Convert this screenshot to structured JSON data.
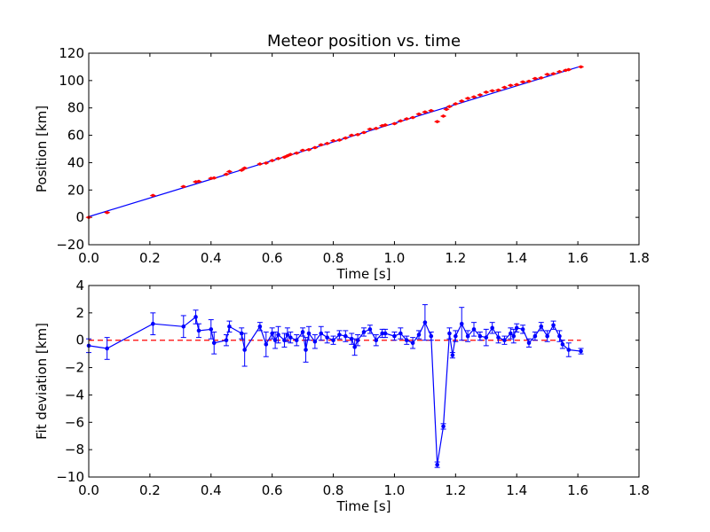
{
  "chart_data": [
    {
      "type": "scatter",
      "title": "Meteor position vs. time",
      "xlabel": "Time [s]",
      "ylabel": "Position [km]",
      "xlim": [
        0.0,
        1.8
      ],
      "ylim": [
        -20,
        120
      ],
      "xticks": [
        "0.0",
        "0.2",
        "0.4",
        "0.6",
        "0.8",
        "1.0",
        "1.2",
        "1.4",
        "1.6",
        "1.8"
      ],
      "yticks": [
        "−20",
        "0",
        "20",
        "40",
        "60",
        "80",
        "100",
        "120"
      ],
      "grid": false,
      "series": [
        {
          "kind": "points",
          "marker": "diamond",
          "color": "#ff0000",
          "x": [
            0.0,
            0.06,
            0.21,
            0.31,
            0.35,
            0.36,
            0.4,
            0.41,
            0.45,
            0.46,
            0.5,
            0.51,
            0.56,
            0.58,
            0.6,
            0.62,
            0.64,
            0.65,
            0.66,
            0.68,
            0.7,
            0.72,
            0.74,
            0.76,
            0.78,
            0.8,
            0.82,
            0.84,
            0.86,
            0.88,
            0.9,
            0.92,
            0.94,
            0.96,
            0.97,
            1.0,
            1.02,
            1.04,
            1.06,
            1.08,
            1.1,
            1.12,
            1.14,
            1.16,
            1.17,
            1.18,
            1.2,
            1.22,
            1.24,
            1.26,
            1.28,
            1.3,
            1.32,
            1.34,
            1.36,
            1.38,
            1.4,
            1.42,
            1.44,
            1.46,
            1.48,
            1.5,
            1.52,
            1.54,
            1.56,
            1.57,
            1.61
          ],
          "y": [
            0.0,
            3.5,
            16.0,
            22.5,
            26.0,
            26.3,
            28.5,
            28.8,
            31.5,
            33.5,
            34.5,
            36.0,
            39.0,
            39.7,
            41.5,
            43.0,
            44.0,
            45.0,
            46.0,
            47.0,
            49.0,
            49.5,
            51.0,
            53.0,
            54.0,
            56.0,
            56.5,
            58.0,
            60.0,
            60.5,
            62.0,
            64.5,
            65.0,
            67.0,
            67.5,
            68.5,
            70.5,
            72.0,
            73.0,
            75.5,
            77.0,
            78.0,
            70.0,
            74.0,
            79.0,
            81.0,
            83.0,
            85.0,
            87.0,
            88.0,
            89.5,
            91.5,
            92.5,
            93.0,
            95.0,
            96.5,
            97.0,
            99.0,
            99.5,
            101.5,
            102.0,
            104.5,
            105.0,
            106.5,
            107.5,
            108.0,
            110.0
          ]
        },
        {
          "kind": "line",
          "color": "#0000ff",
          "x": [
            0.0,
            1.61
          ],
          "y": [
            0.5,
            110.5
          ]
        }
      ]
    },
    {
      "type": "line",
      "xlabel": "Time [s]",
      "ylabel": "Fit deviation [km]",
      "xlim": [
        0.0,
        1.8
      ],
      "ylim": [
        -10,
        4
      ],
      "xticks": [
        "0.0",
        "0.2",
        "0.4",
        "0.6",
        "0.8",
        "1.0",
        "1.2",
        "1.4",
        "1.6",
        "1.8"
      ],
      "yticks": [
        "−10",
        "−8",
        "−6",
        "−4",
        "−2",
        "0",
        "2",
        "4"
      ],
      "grid": false,
      "reference_line": {
        "y": 0,
        "style": "dashed",
        "color": "#ff0000",
        "x": [
          0.0,
          1.61
        ]
      },
      "series": [
        {
          "color": "#0000ff",
          "marker": "dot",
          "x": [
            0.0,
            0.06,
            0.21,
            0.31,
            0.35,
            0.36,
            0.4,
            0.41,
            0.45,
            0.46,
            0.5,
            0.51,
            0.56,
            0.58,
            0.6,
            0.61,
            0.62,
            0.64,
            0.65,
            0.66,
            0.68,
            0.7,
            0.71,
            0.72,
            0.74,
            0.76,
            0.78,
            0.8,
            0.82,
            0.84,
            0.86,
            0.87,
            0.88,
            0.9,
            0.92,
            0.94,
            0.96,
            0.97,
            1.0,
            1.02,
            1.04,
            1.06,
            1.08,
            1.1,
            1.12,
            1.14,
            1.16,
            1.18,
            1.19,
            1.2,
            1.22,
            1.24,
            1.26,
            1.28,
            1.3,
            1.32,
            1.34,
            1.36,
            1.38,
            1.39,
            1.4,
            1.42,
            1.44,
            1.46,
            1.48,
            1.5,
            1.52,
            1.54,
            1.55,
            1.57,
            1.61
          ],
          "y": [
            -0.4,
            -0.6,
            1.2,
            1.0,
            1.7,
            0.7,
            0.8,
            -0.2,
            0.0,
            1.0,
            0.5,
            -0.7,
            1.0,
            -0.3,
            0.5,
            0.0,
            0.4,
            0.0,
            0.4,
            0.2,
            0.0,
            0.6,
            -0.7,
            0.5,
            -0.1,
            0.5,
            0.2,
            0.0,
            0.4,
            0.3,
            0.1,
            -0.5,
            0.0,
            0.6,
            0.8,
            0.0,
            0.5,
            0.5,
            0.3,
            0.5,
            0.0,
            -0.2,
            0.4,
            1.3,
            0.3,
            -9.1,
            -6.3,
            0.5,
            -1.1,
            0.3,
            1.2,
            0.3,
            0.8,
            0.3,
            0.2,
            0.9,
            0.2,
            0.0,
            0.5,
            0.3,
            0.9,
            0.8,
            -0.2,
            0.3,
            1.0,
            0.3,
            1.1,
            0.3,
            -0.3,
            -0.7,
            -0.8
          ],
          "yerr": [
            0.5,
            0.8,
            0.8,
            0.8,
            0.5,
            0.5,
            0.7,
            0.8,
            0.4,
            0.4,
            0.4,
            1.2,
            0.3,
            0.9,
            0.4,
            0.6,
            0.6,
            0.5,
            0.5,
            0.4,
            0.4,
            0.3,
            0.9,
            0.5,
            0.5,
            0.5,
            0.4,
            0.3,
            0.3,
            0.4,
            0.4,
            0.6,
            0.4,
            0.3,
            0.3,
            0.4,
            0.3,
            0.3,
            0.3,
            0.4,
            0.3,
            0.4,
            0.3,
            1.3,
            0.3,
            0.2,
            0.2,
            0.4,
            0.2,
            0.4,
            1.2,
            0.4,
            0.5,
            0.3,
            0.6,
            0.4,
            0.4,
            0.3,
            0.4,
            0.5,
            0.3,
            0.3,
            0.3,
            0.3,
            0.3,
            0.4,
            0.3,
            0.4,
            0.3,
            0.5,
            0.2
          ]
        }
      ]
    }
  ]
}
